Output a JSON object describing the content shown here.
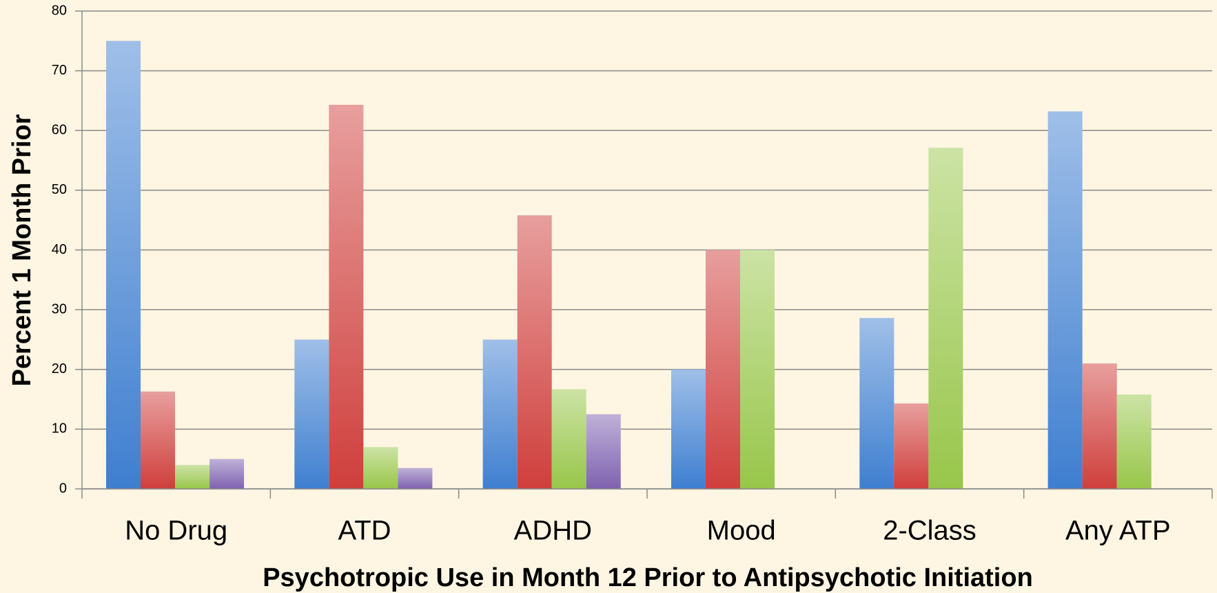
{
  "chart_data": {
    "type": "bar",
    "x_label": "Psychotropic Use in Month 12 Prior to Antipsychotic Initiation",
    "y_label": "Percent 1 Month Prior",
    "categories": [
      "No Drug",
      "ATD",
      "ADHD",
      "Mood",
      "2-Class",
      "Any ATP"
    ],
    "series": [
      {
        "color": "#3f7fd0",
        "values": [
          75,
          25,
          25,
          20,
          28.6,
          63.2
        ]
      },
      {
        "color": "#cf3f3c",
        "values": [
          16.3,
          64.3,
          45.8,
          40,
          14.3,
          21
        ]
      },
      {
        "color": "#98c64a",
        "values": [
          4,
          7,
          16.7,
          40,
          57.1,
          15.8
        ]
      },
      {
        "color": "#7f62b0",
        "values": [
          5,
          3.5,
          12.5,
          null,
          null,
          null
        ]
      }
    ],
    "ylim": [
      0,
      80
    ],
    "yticks": [
      0,
      10,
      20,
      30,
      40,
      50,
      60,
      70,
      80
    ],
    "grid": true
  }
}
